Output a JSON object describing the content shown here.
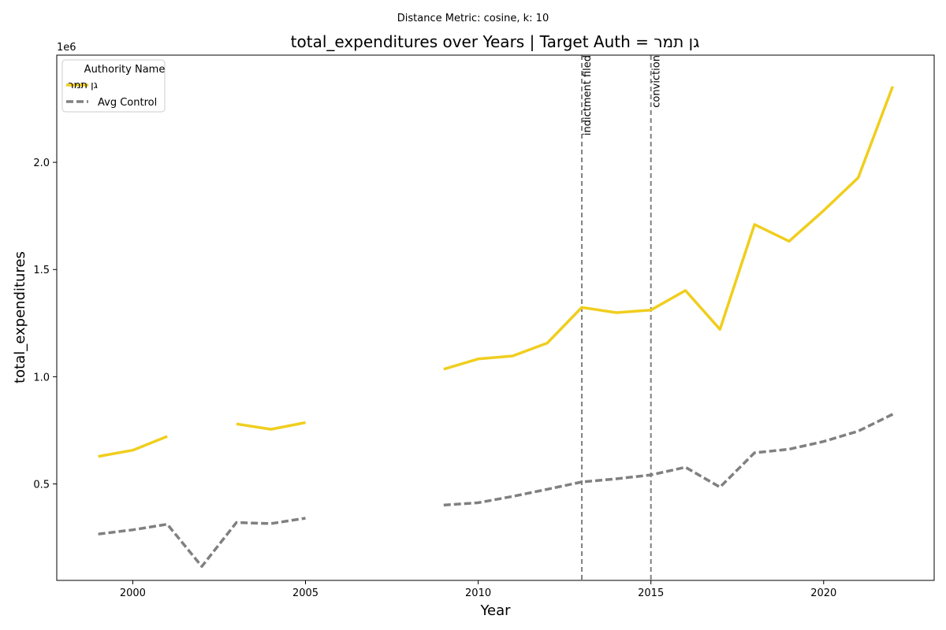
{
  "suptitle": "Distance Metric: cosine, k: 10",
  "chart_data": {
    "type": "line",
    "title": "total_expenditures over Years | Target Auth = גן תמר",
    "xlabel": "Year",
    "ylabel": "total_expenditures",
    "y_offset_label": "1e6",
    "xlim": [
      1997.8,
      2023.2
    ],
    "ylim": [
      50000,
      2500000
    ],
    "x_ticks": [
      2000,
      2005,
      2010,
      2015,
      2020
    ],
    "x_tick_labels": [
      "2000",
      "2005",
      "2010",
      "2015",
      "2020"
    ],
    "y_ticks": [
      500000,
      1000000,
      1500000,
      2000000
    ],
    "y_tick_labels": [
      "0.5",
      "1.0",
      "1.5",
      "2.0"
    ],
    "grid": false,
    "legend": {
      "title": "Authority Name",
      "placement": "upper-left"
    },
    "series": [
      {
        "name": "גן תמר",
        "color": "#F0CE1E",
        "dashed": false,
        "points": [
          [
            1999,
            628000
          ],
          [
            2000,
            657000
          ],
          [
            2001,
            722000
          ],
          [
            2002,
            null
          ],
          [
            2003,
            780000
          ],
          [
            2004,
            755000
          ],
          [
            2005,
            786000
          ],
          [
            2006,
            null
          ],
          [
            2007,
            null
          ],
          [
            2008,
            null
          ],
          [
            2009,
            1035000
          ],
          [
            2010,
            1083000
          ],
          [
            2011,
            1097000
          ],
          [
            2012,
            1157000
          ],
          [
            2013,
            1323000
          ],
          [
            2014,
            1299000
          ],
          [
            2015,
            1311000
          ],
          [
            2016,
            1402000
          ],
          [
            2017,
            1221000
          ],
          [
            2018,
            1710000
          ],
          [
            2019,
            1632000
          ],
          [
            2020,
            1775000
          ],
          [
            2021,
            1928000
          ],
          [
            2022,
            2354000
          ]
        ]
      },
      {
        "name": "Avg Control",
        "color": "#808080",
        "dashed": true,
        "points": [
          [
            1999,
            266000
          ],
          [
            2000,
            286000
          ],
          [
            2001,
            312000
          ],
          [
            2002,
            115000
          ],
          [
            2003,
            320000
          ],
          [
            2004,
            315000
          ],
          [
            2005,
            340000
          ],
          [
            2006,
            null
          ],
          [
            2007,
            null
          ],
          [
            2008,
            null
          ],
          [
            2009,
            401000
          ],
          [
            2010,
            412000
          ],
          [
            2011,
            442000
          ],
          [
            2012,
            475000
          ],
          [
            2013,
            509000
          ],
          [
            2014,
            524000
          ],
          [
            2015,
            542000
          ],
          [
            2016,
            578000
          ],
          [
            2017,
            485000
          ],
          [
            2018,
            645000
          ],
          [
            2019,
            662000
          ],
          [
            2020,
            698000
          ],
          [
            2021,
            746000
          ],
          [
            2022,
            825000
          ]
        ]
      }
    ],
    "events": [
      {
        "x": 2013,
        "label": "indictment filed"
      },
      {
        "x": 2015,
        "label": "conviction"
      }
    ]
  }
}
